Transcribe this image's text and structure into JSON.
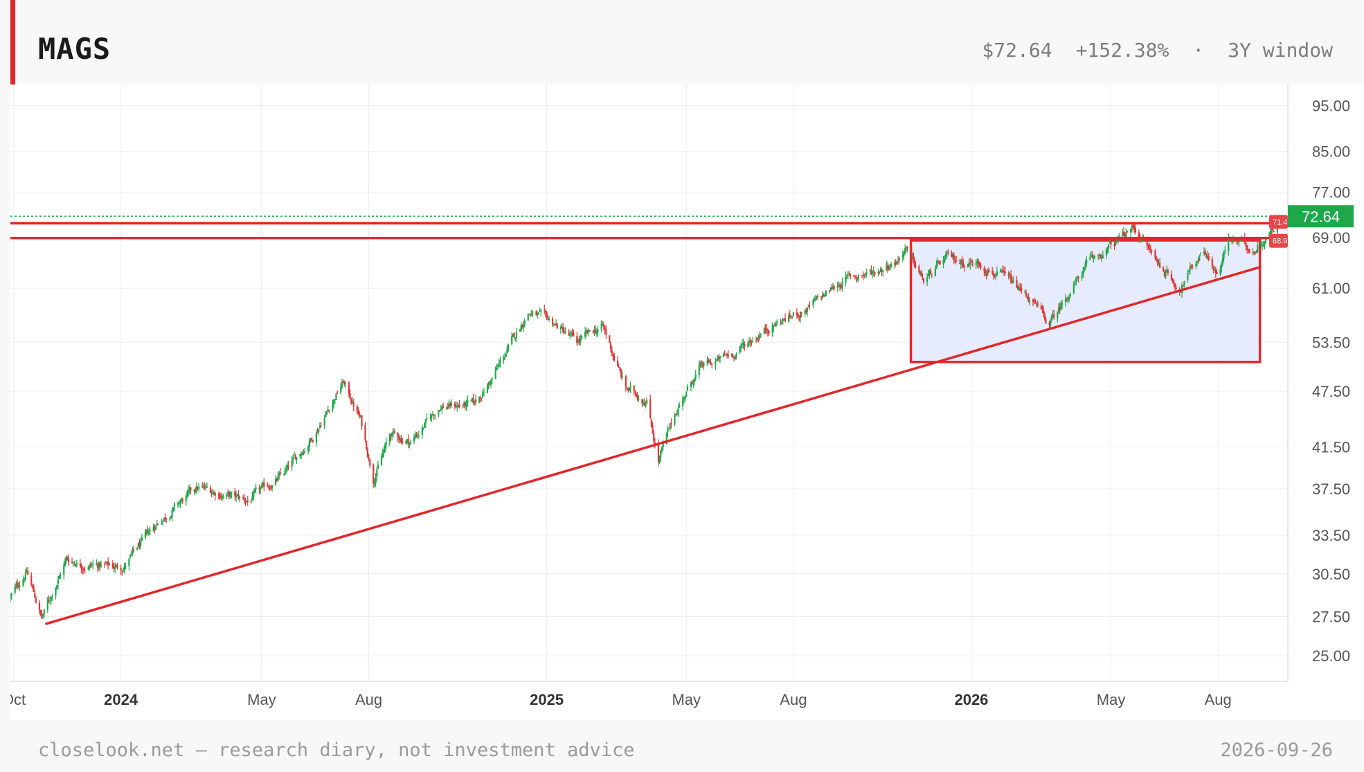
{
  "header": {
    "ticker": "MAGS",
    "price": "$72.64",
    "change": "+152.38%",
    "separator": "·",
    "window": "3Y window"
  },
  "footer": {
    "note": "closelook.net — research diary, not investment advice",
    "date": "2026-09-26"
  },
  "colors": {
    "accent": "#e3262b",
    "up": "#1fa84a",
    "down": "#e03535",
    "last_price_badge": "#1fa84a",
    "level_badge": "#e3474b",
    "zone_fill": "#e6ecfd",
    "grid": "#eeeeee",
    "axis_text": "#555555"
  },
  "chart_data": {
    "type": "candlestick",
    "y_scale": "log",
    "ylim": [
      23.5,
      100
    ],
    "xlim": [
      "2023-09-28",
      "2026-09-30"
    ],
    "grid": true,
    "y_ticks": [
      "95.00",
      "85.00",
      "77.00",
      "69.00",
      "61.00",
      "53.50",
      "47.50",
      "41.50",
      "37.50",
      "33.50",
      "30.50",
      "27.50",
      "25.00"
    ],
    "x_ticks": [
      {
        "date": "2023-10-01",
        "label": "Oct",
        "bold": false
      },
      {
        "date": "2024-01-01",
        "label": "2024",
        "bold": true
      },
      {
        "date": "2024-05-01",
        "label": "May",
        "bold": false
      },
      {
        "date": "2024-08-01",
        "label": "Aug",
        "bold": false
      },
      {
        "date": "2025-01-01",
        "label": "2025",
        "bold": true
      },
      {
        "date": "2025-05-01",
        "label": "May",
        "bold": false
      },
      {
        "date": "2025-08-01",
        "label": "Aug",
        "bold": false
      },
      {
        "date": "2026-01-01",
        "label": "2026",
        "bold": true
      },
      {
        "date": "2026-05-01",
        "label": "May",
        "bold": false
      },
      {
        "date": "2026-08-01",
        "label": "Aug",
        "bold": false
      }
    ],
    "price_path": [
      [
        "2023-09-28",
        28.8
      ],
      [
        "2023-10-12",
        30.7
      ],
      [
        "2023-10-25",
        27.4
      ],
      [
        "2023-11-15",
        31.6
      ],
      [
        "2023-12-01",
        31.2
      ],
      [
        "2024-01-03",
        31.0
      ],
      [
        "2024-02-01",
        34.5
      ],
      [
        "2024-03-07",
        37.6
      ],
      [
        "2024-04-19",
        36.4
      ],
      [
        "2024-05-20",
        38.8
      ],
      [
        "2024-06-15",
        42.8
      ],
      [
        "2024-07-10",
        48.6
      ],
      [
        "2024-07-25",
        44.3
      ],
      [
        "2024-08-05",
        38.5
      ],
      [
        "2024-08-20",
        42.8
      ],
      [
        "2024-09-06",
        42.0
      ],
      [
        "2024-10-01",
        45.8
      ],
      [
        "2024-10-31",
        46.0
      ],
      [
        "2024-11-15",
        49.0
      ],
      [
        "2024-12-16",
        57.6
      ],
      [
        "2025-01-07",
        56.0
      ],
      [
        "2025-01-27",
        53.5
      ],
      [
        "2025-02-18",
        55.6
      ],
      [
        "2025-03-10",
        47.8
      ],
      [
        "2025-03-28",
        46.5
      ],
      [
        "2025-04-07",
        40.2
      ],
      [
        "2025-04-24",
        45.8
      ],
      [
        "2025-05-12",
        50.2
      ],
      [
        "2025-06-10",
        52.0
      ],
      [
        "2025-07-10",
        55.5
      ],
      [
        "2025-08-13",
        58.0
      ],
      [
        "2025-09-15",
        62.5
      ],
      [
        "2025-10-10",
        63.5
      ],
      [
        "2025-10-30",
        65.5
      ],
      [
        "2025-11-05",
        67.3
      ],
      [
        "2025-11-21",
        62.0
      ],
      [
        "2025-12-10",
        65.5
      ],
      [
        "2026-01-10",
        64.7
      ],
      [
        "2026-02-01",
        62.2
      ],
      [
        "2026-02-20",
        59.5
      ],
      [
        "2026-03-09",
        55.8
      ],
      [
        "2026-03-25",
        60.2
      ],
      [
        "2026-04-10",
        64.5
      ],
      [
        "2026-05-01",
        67.5
      ],
      [
        "2026-05-21",
        70.7
      ],
      [
        "2026-06-10",
        65.0
      ],
      [
        "2026-06-29",
        61.0
      ],
      [
        "2026-07-20",
        67.2
      ],
      [
        "2026-08-01",
        63.0
      ],
      [
        "2026-08-10",
        68.6
      ],
      [
        "2026-09-01",
        67.0
      ],
      [
        "2026-09-26",
        72.64
      ]
    ],
    "last_price": 72.64,
    "last_price_label": "72.64",
    "horizontal_levels": [
      {
        "price": 71.4,
        "label": "71.4"
      },
      {
        "price": 68.9,
        "label": "68.9"
      }
    ],
    "trendlines": [
      {
        "start": [
          "2023-10-28",
          27.0
        ],
        "end": [
          "2026-09-06",
          64.2
        ]
      }
    ],
    "zones": [
      {
        "start": "2025-11-10",
        "end": "2026-09-06",
        "top": 68.5,
        "bottom": 51.0
      }
    ]
  }
}
